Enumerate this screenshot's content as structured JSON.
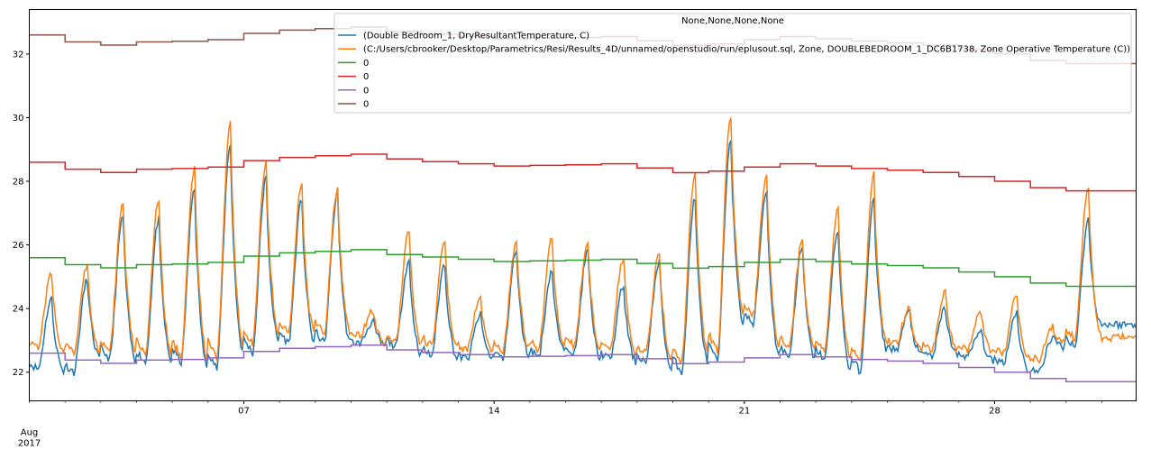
{
  "chart_data": {
    "type": "line",
    "title": "",
    "xlabel": "",
    "ylabel": "",
    "xlim": [
      "2017-08-01T00:00",
      "2017-08-31T23:00"
    ],
    "ylim": [
      21.1,
      33.4
    ],
    "yticks": [
      22,
      24,
      26,
      28,
      30,
      32
    ],
    "xticks_major": [
      {
        "date": "2017-08-07",
        "label": "07"
      },
      {
        "date": "2017-08-14",
        "label": "14"
      },
      {
        "date": "2017-08-21",
        "label": "21"
      },
      {
        "date": "2017-08-28",
        "label": "28"
      }
    ],
    "xtick_first": {
      "date": "2017-08-01",
      "label_line1": "Aug",
      "label_line2": "2017"
    },
    "grid": false,
    "legend": {
      "title": "None,None,None,None",
      "placement": "upper-right",
      "entries": [
        {
          "label": "(Double Bedroom_1, DryResultantTemperature, C)",
          "color": "#1f77b4"
        },
        {
          "label": "(C:/Users/cbrooker/Desktop/Parametrics/Resi/Results_4D/unnamed/openstudio/run/eplusout.sql, Zone, DOUBLEBEDROOM_1_DC6B1738, Zone Operative Temperature (C))",
          "color": "#ff7f0e"
        },
        {
          "label": "0",
          "color": "#2ca02c"
        },
        {
          "label": "0",
          "color": "#d62728"
        },
        {
          "label": "0",
          "color": "#9467bd"
        },
        {
          "label": "0",
          "color": "#8c564b"
        }
      ]
    },
    "step_series": [
      {
        "color": "#2ca02c",
        "x": [
          "2017-08-01",
          "2017-08-02",
          "2017-08-03",
          "2017-08-04",
          "2017-08-05",
          "2017-08-06",
          "2017-08-07",
          "2017-08-08",
          "2017-08-09",
          "2017-08-10",
          "2017-08-11",
          "2017-08-12",
          "2017-08-13",
          "2017-08-14",
          "2017-08-15",
          "2017-08-16",
          "2017-08-17",
          "2017-08-18",
          "2017-08-19",
          "2017-08-20",
          "2017-08-21",
          "2017-08-22",
          "2017-08-23",
          "2017-08-24",
          "2017-08-25",
          "2017-08-26",
          "2017-08-27",
          "2017-08-28",
          "2017-08-29",
          "2017-08-30",
          "2017-08-31"
        ],
        "values": [
          25.6,
          25.38,
          25.28,
          25.38,
          25.4,
          25.45,
          25.65,
          25.75,
          25.8,
          25.85,
          25.7,
          25.62,
          25.55,
          25.48,
          25.5,
          25.52,
          25.55,
          25.42,
          25.27,
          25.32,
          25.45,
          25.55,
          25.48,
          25.4,
          25.35,
          25.28,
          25.15,
          25.0,
          24.8,
          24.7,
          24.7
        ]
      },
      {
        "color": "#d62728",
        "x": [
          "2017-08-01",
          "2017-08-02",
          "2017-08-03",
          "2017-08-04",
          "2017-08-05",
          "2017-08-06",
          "2017-08-07",
          "2017-08-08",
          "2017-08-09",
          "2017-08-10",
          "2017-08-11",
          "2017-08-12",
          "2017-08-13",
          "2017-08-14",
          "2017-08-15",
          "2017-08-16",
          "2017-08-17",
          "2017-08-18",
          "2017-08-19",
          "2017-08-20",
          "2017-08-21",
          "2017-08-22",
          "2017-08-23",
          "2017-08-24",
          "2017-08-25",
          "2017-08-26",
          "2017-08-27",
          "2017-08-28",
          "2017-08-29",
          "2017-08-30",
          "2017-08-31"
        ],
        "values": [
          28.6,
          28.38,
          28.28,
          28.38,
          28.4,
          28.45,
          28.65,
          28.75,
          28.8,
          28.85,
          28.7,
          28.62,
          28.55,
          28.48,
          28.5,
          28.52,
          28.55,
          28.42,
          28.27,
          28.32,
          28.45,
          28.55,
          28.48,
          28.4,
          28.35,
          28.28,
          28.15,
          28.0,
          27.8,
          27.7,
          27.7
        ]
      },
      {
        "color": "#9467bd",
        "x": [
          "2017-08-01",
          "2017-08-02",
          "2017-08-03",
          "2017-08-04",
          "2017-08-05",
          "2017-08-06",
          "2017-08-07",
          "2017-08-08",
          "2017-08-09",
          "2017-08-10",
          "2017-08-11",
          "2017-08-12",
          "2017-08-13",
          "2017-08-14",
          "2017-08-15",
          "2017-08-16",
          "2017-08-17",
          "2017-08-18",
          "2017-08-19",
          "2017-08-20",
          "2017-08-21",
          "2017-08-22",
          "2017-08-23",
          "2017-08-24",
          "2017-08-25",
          "2017-08-26",
          "2017-08-27",
          "2017-08-28",
          "2017-08-29",
          "2017-08-30",
          "2017-08-31"
        ],
        "values": [
          22.6,
          22.38,
          22.28,
          22.38,
          22.4,
          22.45,
          22.65,
          22.75,
          22.8,
          22.85,
          22.7,
          22.62,
          22.55,
          22.48,
          22.5,
          22.52,
          22.55,
          22.42,
          22.27,
          22.32,
          22.45,
          22.55,
          22.48,
          22.4,
          22.35,
          22.28,
          22.15,
          22.0,
          21.8,
          21.7,
          21.7
        ]
      },
      {
        "color": "#8c564b",
        "x": [
          "2017-08-01",
          "2017-08-02",
          "2017-08-03",
          "2017-08-04",
          "2017-08-05",
          "2017-08-06",
          "2017-08-07",
          "2017-08-08",
          "2017-08-09",
          "2017-08-10",
          "2017-08-11",
          "2017-08-12",
          "2017-08-13",
          "2017-08-14",
          "2017-08-15",
          "2017-08-16",
          "2017-08-17",
          "2017-08-18",
          "2017-08-19",
          "2017-08-20",
          "2017-08-21",
          "2017-08-22",
          "2017-08-23",
          "2017-08-24",
          "2017-08-25",
          "2017-08-26",
          "2017-08-27",
          "2017-08-28",
          "2017-08-29",
          "2017-08-30",
          "2017-08-31"
        ],
        "values": [
          32.6,
          32.38,
          32.28,
          32.38,
          32.4,
          32.45,
          32.65,
          32.75,
          32.8,
          32.85,
          32.7,
          32.62,
          32.55,
          32.48,
          32.5,
          32.52,
          32.55,
          32.42,
          32.27,
          32.32,
          32.45,
          32.55,
          32.48,
          32.4,
          32.35,
          32.28,
          32.15,
          32.0,
          31.8,
          31.7,
          31.7
        ]
      }
    ],
    "daily_series": [
      {
        "color": "#1f77b4",
        "x": [
          "2017-08-01",
          "2017-08-02",
          "2017-08-03",
          "2017-08-04",
          "2017-08-05",
          "2017-08-06",
          "2017-08-07",
          "2017-08-08",
          "2017-08-09",
          "2017-08-10",
          "2017-08-11",
          "2017-08-12",
          "2017-08-13",
          "2017-08-14",
          "2017-08-15",
          "2017-08-16",
          "2017-08-17",
          "2017-08-18",
          "2017-08-19",
          "2017-08-20",
          "2017-08-21",
          "2017-08-22",
          "2017-08-23",
          "2017-08-24",
          "2017-08-25",
          "2017-08-26",
          "2017-08-27",
          "2017-08-28",
          "2017-08-29",
          "2017-08-30",
          "2017-08-31"
        ],
        "daily_min": [
          22.1,
          22.0,
          22.4,
          22.3,
          22.3,
          22.1,
          22.6,
          22.9,
          22.9,
          22.9,
          22.8,
          22.5,
          22.4,
          22.4,
          22.5,
          22.6,
          22.4,
          22.3,
          22.0,
          22.3,
          23.5,
          22.5,
          22.4,
          22.0,
          22.7,
          22.5,
          22.5,
          22.3,
          22.0,
          22.8,
          23.5
        ],
        "daily_max": [
          24.3,
          24.9,
          26.9,
          26.8,
          27.8,
          29.2,
          28.1,
          27.4,
          27.6,
          23.6,
          25.5,
          25.4,
          23.8,
          25.8,
          25.2,
          25.8,
          24.7,
          25.5,
          27.5,
          29.4,
          27.7,
          25.9,
          26.5,
          27.4,
          23.9,
          24.0,
          23.3,
          23.9,
          23.1,
          26.8,
          23.5
        ]
      },
      {
        "color": "#ff7f0e",
        "x": [
          "2017-08-01",
          "2017-08-02",
          "2017-08-03",
          "2017-08-04",
          "2017-08-05",
          "2017-08-06",
          "2017-08-07",
          "2017-08-08",
          "2017-08-09",
          "2017-08-10",
          "2017-08-11",
          "2017-08-12",
          "2017-08-13",
          "2017-08-14",
          "2017-08-15",
          "2017-08-16",
          "2017-08-17",
          "2017-08-18",
          "2017-08-19",
          "2017-08-20",
          "2017-08-21",
          "2017-08-22",
          "2017-08-23",
          "2017-08-24",
          "2017-08-25",
          "2017-08-26",
          "2017-08-27",
          "2017-08-28",
          "2017-08-29",
          "2017-08-30",
          "2017-08-31"
        ],
        "daily_min": [
          22.8,
          22.6,
          22.6,
          22.6,
          22.5,
          22.4,
          22.9,
          23.2,
          23.2,
          23.2,
          22.9,
          22.8,
          22.7,
          22.6,
          22.7,
          22.8,
          22.7,
          22.6,
          22.3,
          22.6,
          23.8,
          22.8,
          22.7,
          22.4,
          22.9,
          22.7,
          22.7,
          22.6,
          22.4,
          23.0,
          23.1
        ],
        "daily_max": [
          25.1,
          25.4,
          27.3,
          27.4,
          28.4,
          29.8,
          28.6,
          27.9,
          27.8,
          23.9,
          26.5,
          26.1,
          24.4,
          26.1,
          26.2,
          26.1,
          25.6,
          25.8,
          28.3,
          30.1,
          28.1,
          26.1,
          27.1,
          28.2,
          24.0,
          24.5,
          23.9,
          24.4,
          23.4,
          27.8,
          23.1
        ]
      }
    ]
  }
}
